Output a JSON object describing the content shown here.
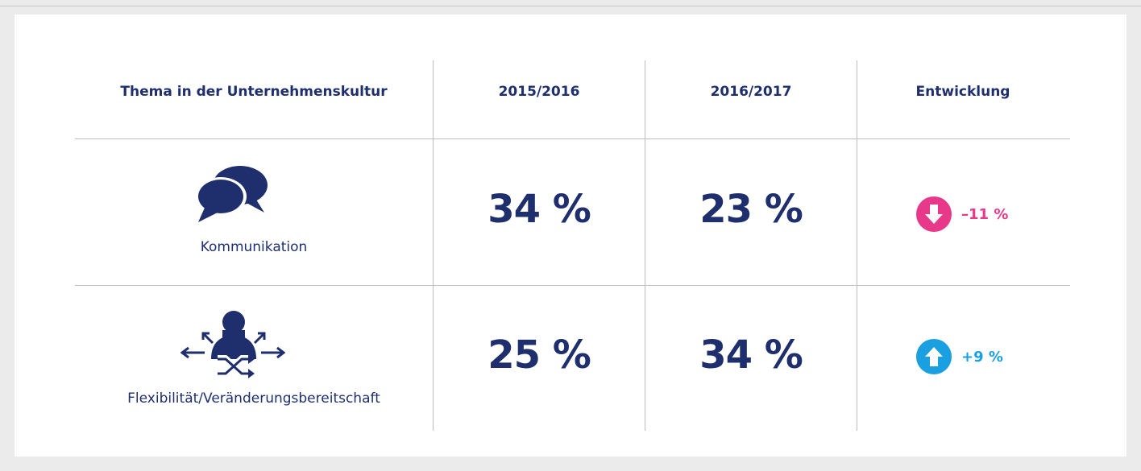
{
  "table": {
    "header": [
      "Thema in der Unternehmenskultur",
      "2015/2016",
      "2016/2017",
      "Entwicklung"
    ],
    "rows": [
      [
        "Kommunikation",
        "34 %",
        "23 %",
        "–11 %"
      ],
      [
        "Flexibilität/Veränderungsbereitschaft",
        "25 %",
        "34 %",
        "+9 %"
      ]
    ]
  }
}
